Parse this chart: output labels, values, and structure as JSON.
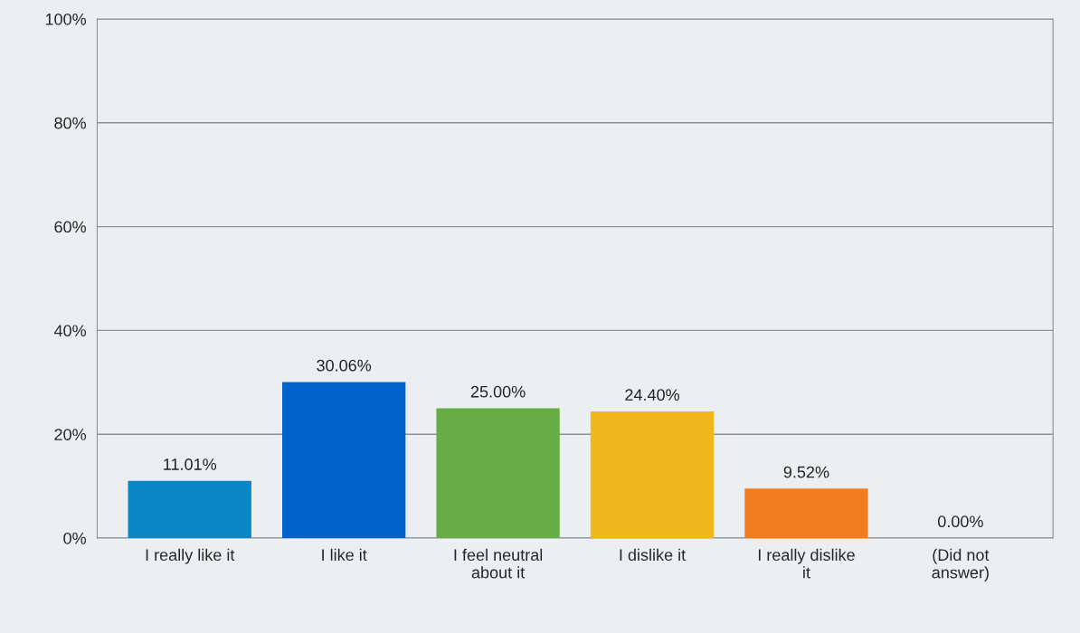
{
  "chart_data": {
    "type": "bar",
    "categories": [
      "I really like it",
      "I like it",
      "I feel neutral\nabout it",
      "I dislike it",
      "I really dislike\nit",
      "(Did not\nanswer)"
    ],
    "values": [
      11.01,
      30.06,
      25.0,
      24.4,
      9.52,
      0.0
    ],
    "colors": [
      "#0a86c6",
      "#0063cc",
      "#67ad45",
      "#f1b71c",
      "#f07e20",
      "#9aa3ab"
    ],
    "value_labels": [
      "11.01%",
      "30.06%",
      "25.00%",
      "24.40%",
      "9.52%",
      "0.00%"
    ],
    "ylim": [
      0,
      100
    ],
    "yticks": [
      {
        "value": 0,
        "label": "0%"
      },
      {
        "value": 20,
        "label": "20%"
      },
      {
        "value": 40,
        "label": "40%"
      },
      {
        "value": 60,
        "label": "60%"
      },
      {
        "value": 80,
        "label": "80%"
      },
      {
        "value": 100,
        "label": "100%"
      }
    ],
    "grid": "y"
  }
}
